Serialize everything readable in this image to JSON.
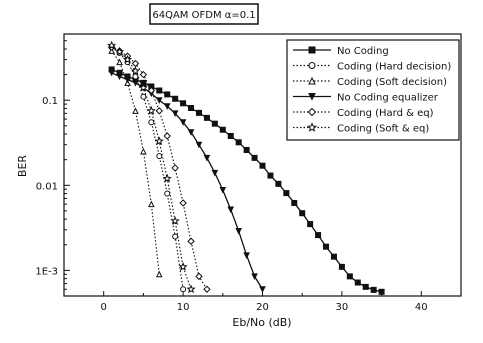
{
  "chart_data": {
    "type": "line",
    "title": "64QAM OFDM α=0.1",
    "xlabel": "Eb/No (dB)",
    "ylabel": "BER",
    "xlim": [
      -5,
      45
    ],
    "ylim": [
      0.0005,
      0.6
    ],
    "yscale": "log",
    "xticks": [
      0,
      10,
      20,
      30,
      40
    ],
    "xtick_labels": [
      "0",
      "10",
      "20",
      "30",
      "40"
    ],
    "yticks": [
      0.1,
      0.01,
      0.001
    ],
    "ytick_labels": [
      "0.1",
      "0.01",
      "1E-3"
    ],
    "grid": false,
    "legend_position": "top-right",
    "series": [
      {
        "name": "No Coding",
        "marker": "square",
        "dash": "solid",
        "color": "#111111",
        "x": [
          1,
          2,
          3,
          4,
          5,
          6,
          7,
          8,
          9,
          10,
          11,
          12,
          13,
          14,
          15,
          16,
          17,
          18,
          19,
          20,
          21,
          22,
          23,
          24,
          25,
          26,
          27,
          28,
          29,
          30,
          31,
          32,
          33,
          34,
          35
        ],
        "y": [
          0.23,
          0.21,
          0.19,
          0.175,
          0.16,
          0.145,
          0.13,
          0.117,
          0.104,
          0.092,
          0.081,
          0.071,
          0.062,
          0.053,
          0.045,
          0.038,
          0.032,
          0.026,
          0.021,
          0.017,
          0.013,
          0.0104,
          0.0081,
          0.0062,
          0.0047,
          0.0035,
          0.0026,
          0.0019,
          0.00145,
          0.0011,
          0.00085,
          0.00072,
          0.00064,
          0.00059,
          0.00056
        ]
      },
      {
        "name": "Coding (Hard decision)",
        "marker": "circle",
        "dash": "dotted",
        "color": "#111111",
        "x": [
          1,
          2,
          3,
          4,
          5,
          6,
          7,
          8,
          9,
          10
        ],
        "y": [
          0.42,
          0.36,
          0.28,
          0.19,
          0.11,
          0.055,
          0.022,
          0.008,
          0.0025,
          0.0006
        ]
      },
      {
        "name": "Coding (Soft decision)",
        "marker": "triangle-up",
        "dash": "dotted",
        "color": "#111111",
        "x": [
          1,
          2,
          3,
          4,
          5,
          6,
          7
        ],
        "y": [
          0.38,
          0.28,
          0.16,
          0.075,
          0.025,
          0.006,
          0.0009
        ]
      },
      {
        "name": "No Coding equalizer",
        "marker": "triangle-down",
        "dash": "solid",
        "color": "#111111",
        "x": [
          1,
          2,
          3,
          4,
          5,
          6,
          7,
          8,
          9,
          10,
          11,
          12,
          13,
          14,
          15,
          16,
          17,
          18,
          19,
          20
        ],
        "y": [
          0.21,
          0.19,
          0.175,
          0.16,
          0.14,
          0.12,
          0.1,
          0.085,
          0.07,
          0.055,
          0.042,
          0.03,
          0.021,
          0.014,
          0.0088,
          0.0052,
          0.0029,
          0.0015,
          0.00085,
          0.0006
        ]
      },
      {
        "name": "Coding (Hard & eq)",
        "marker": "diamond",
        "dash": "dotted",
        "color": "#111111",
        "x": [
          1,
          2,
          3,
          4,
          5,
          6,
          7,
          8,
          9,
          10,
          11,
          12,
          13
        ],
        "y": [
          0.42,
          0.38,
          0.33,
          0.27,
          0.2,
          0.13,
          0.075,
          0.038,
          0.016,
          0.0062,
          0.0022,
          0.00085,
          0.0006
        ]
      },
      {
        "name": "Coding (Soft & eq)",
        "marker": "star",
        "dash": "dotted",
        "color": "#111111",
        "x": [
          1,
          2,
          3,
          4,
          5,
          6,
          7,
          8,
          9,
          10,
          11
        ],
        "y": [
          0.44,
          0.37,
          0.3,
          0.22,
          0.14,
          0.075,
          0.033,
          0.012,
          0.0038,
          0.0011,
          0.0006
        ]
      }
    ]
  }
}
